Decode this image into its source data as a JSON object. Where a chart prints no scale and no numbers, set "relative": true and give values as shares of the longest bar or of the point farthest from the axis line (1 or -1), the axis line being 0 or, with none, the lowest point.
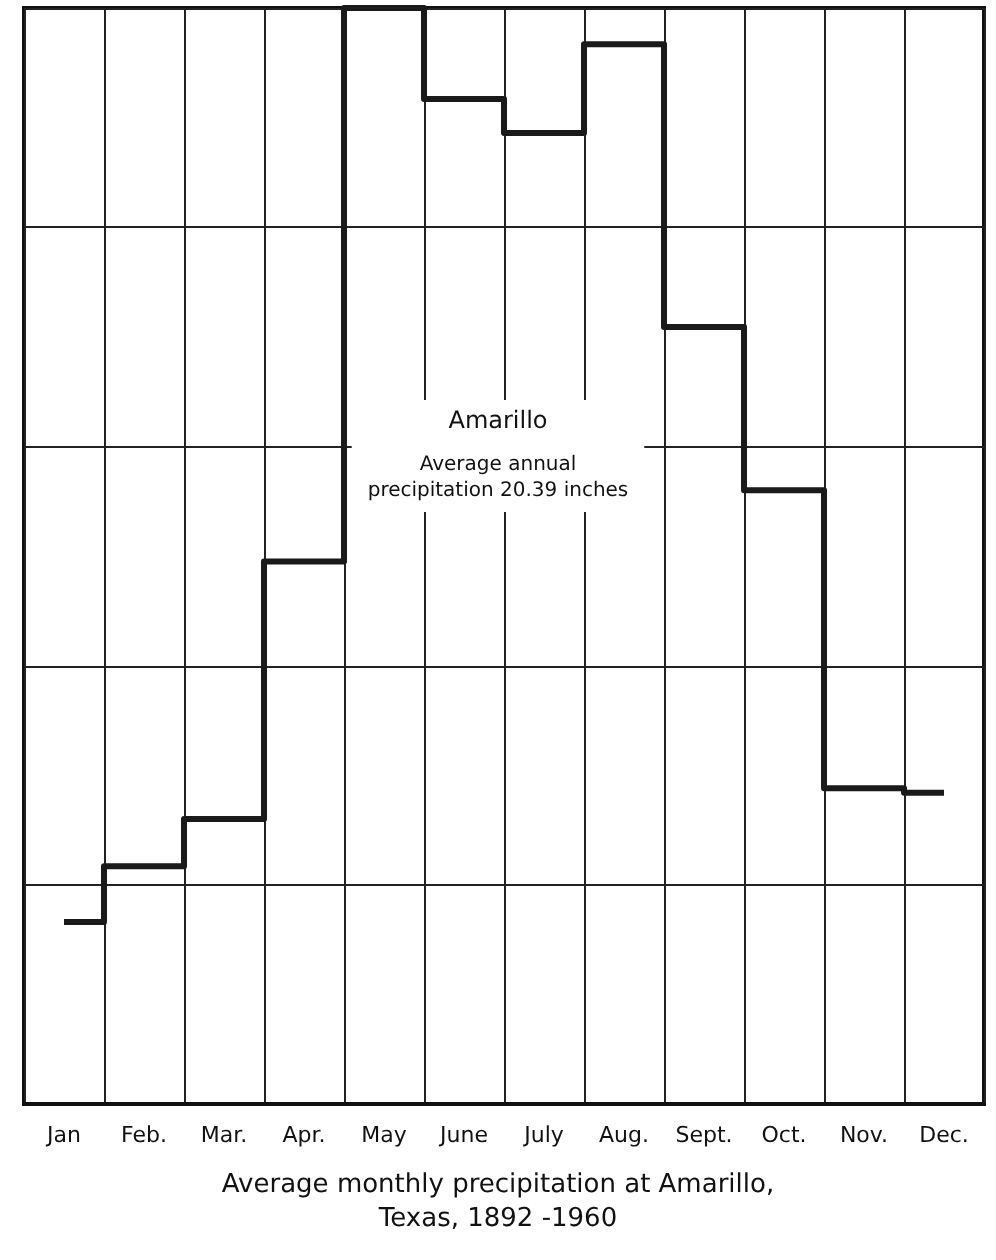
{
  "chart_data": {
    "type": "step",
    "title": "Amarillo",
    "subtitle": "Average annual\nprecipitation 20.39 inches",
    "annotations": [
      "Average monthly precipitation at Amarillo,\nTexas, 1892 -1960"
    ],
    "categories": [
      "Jan",
      "Feb.",
      "Mar.",
      "Apr.",
      "May",
      "June",
      "July",
      "Aug.",
      "Sept.",
      "Oct.",
      "Nov.",
      "Dec."
    ],
    "series": [
      {
        "color": "#1a1a1a",
        "values": [
          0.166,
          0.217,
          0.26,
          0.495,
          1,
          0.917,
          0.886,
          0.967,
          0.709,
          0.56,
          0.288,
          0.284
        ]
      }
    ],
    "relative": true,
    "grid": true,
    "marker": "none",
    "line_style": "solid"
  }
}
